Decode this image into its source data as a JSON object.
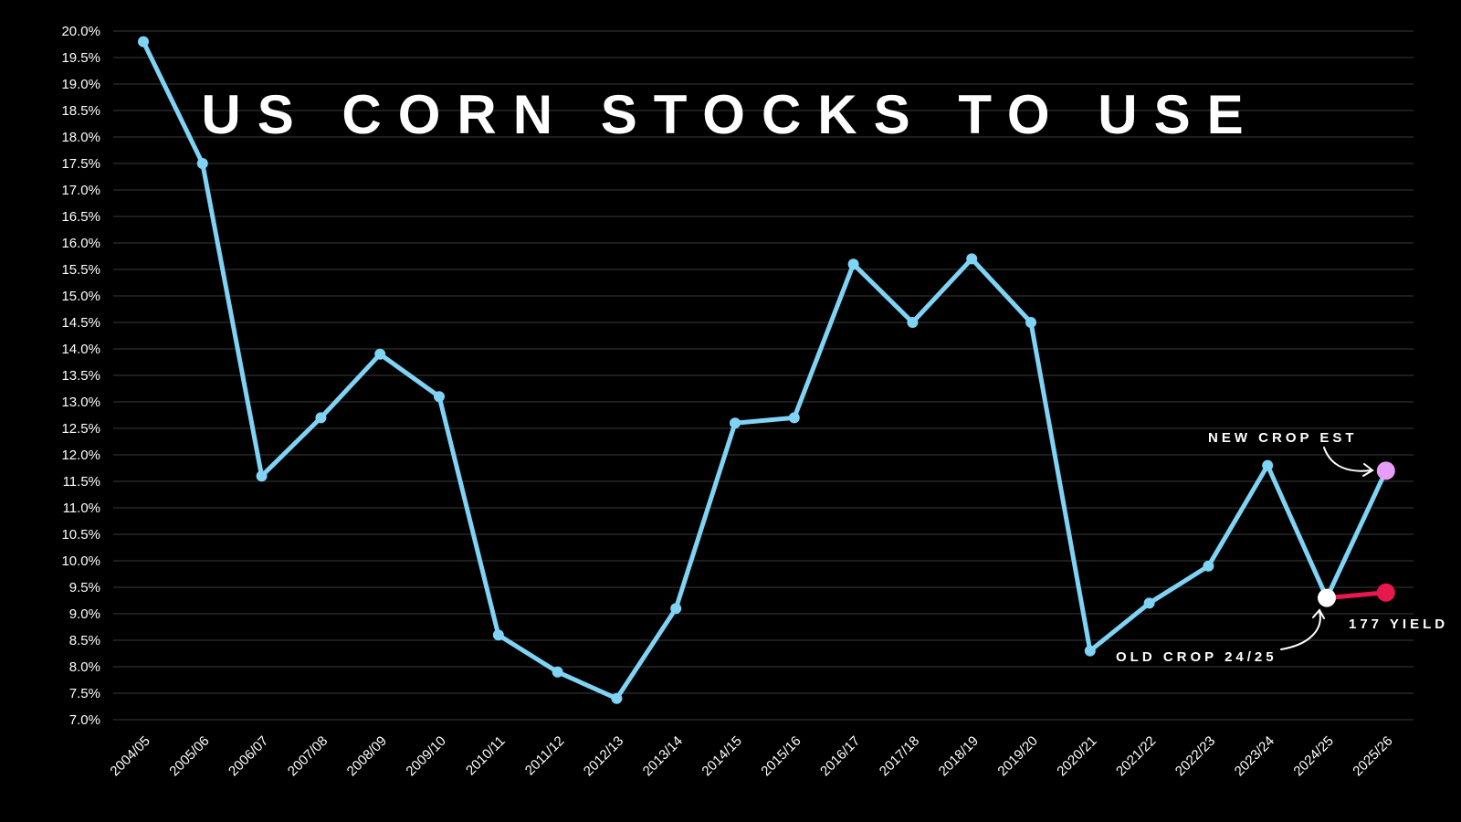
{
  "chart_data": {
    "type": "line",
    "title": "US CORN STOCKS TO USE",
    "categories": [
      "2004/05",
      "2005/06",
      "2006/07",
      "2007/08",
      "2008/09",
      "2009/10",
      "2010/11",
      "2011/12",
      "2012/13",
      "2013/14",
      "2014/15",
      "2015/16",
      "2016/17",
      "2017/18",
      "2018/19",
      "2019/20",
      "2020/21",
      "2021/22",
      "2022/23",
      "2023/24",
      "2024/25",
      "2025/26"
    ],
    "series": [
      {
        "values": [
          19.8,
          17.5,
          11.6,
          12.7,
          13.9,
          13.1,
          8.6,
          7.9,
          7.4,
          9.1,
          12.6,
          12.7,
          15.6,
          14.5,
          15.7,
          14.5,
          8.3,
          9.2,
          9.9,
          11.8,
          9.3,
          11.7
        ],
        "color": "#7fd3f5"
      },
      {
        "x": [
          "2024/25",
          "2025/26"
        ],
        "values": [
          9.3,
          9.4
        ],
        "color": "#e8174d"
      }
    ],
    "highlight_points": [
      {
        "category": "2024/25",
        "value": 9.3,
        "color": "#ffffff"
      },
      {
        "category": "2025/26",
        "value": 11.7,
        "color": "#e79cf5"
      },
      {
        "category": "2025/26",
        "value": 9.4,
        "color": "#e8174d"
      }
    ],
    "annotations": [
      {
        "text": "NEW CROP EST",
        "target": "2025/26"
      },
      {
        "text": "OLD CROP 24/25",
        "target": "2024/25"
      },
      {
        "text": "177 YIELD",
        "target": "2025/26"
      }
    ],
    "ylim": [
      7.0,
      20.0
    ],
    "ytick_step": 0.5,
    "ytick_format": "percent_1dp",
    "grid": true,
    "xlabel": "",
    "ylabel": "",
    "colors": {
      "background": "#000000",
      "grid": "#3a3a3a",
      "text": "#ffffff",
      "arrow": "#ffffff"
    }
  }
}
